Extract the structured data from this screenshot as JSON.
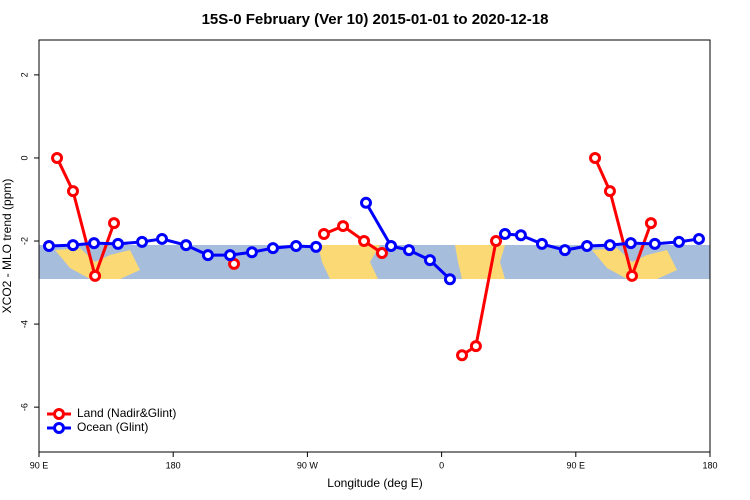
{
  "chart_data": {
    "type": "line",
    "title": "15S-0 February (Ver 10)   2015-01-01 to 2020-12-18",
    "x_label": "Longitude (deg E)",
    "y_label": "XCO2 - MLO trend (ppm)",
    "xlim": [
      90,
      540
    ],
    "ylim": [
      -7.08,
      2.84
    ],
    "xticks": [
      {
        "value": 90,
        "label": "90 E"
      },
      {
        "value": 180,
        "label": "180"
      },
      {
        "value": 270,
        "label": "90 W"
      },
      {
        "value": 360,
        "label": "0"
      },
      {
        "value": 450,
        "label": "90 E"
      },
      {
        "value": 540,
        "label": "180"
      }
    ],
    "yticks": [
      2,
      0,
      -2,
      -4,
      -6
    ],
    "legend": "bottom-left",
    "series": [
      {
        "name": "Land (Nadir&Glint)",
        "color": "#ff0000",
        "x": [
          102.1,
          112.8,
          127.6,
          140.3,
          null,
          220.8,
          null,
          281.1,
          293.9,
          308.0,
          320.0,
          null,
          373.7,
          383.0,
          396.5,
          null,
          462.9,
          472.9,
          487.7,
          500.4
        ],
        "values": [
          0.0,
          -0.8,
          -2.84,
          -1.57,
          null,
          -2.55,
          null,
          -1.83,
          -1.64,
          -2.0,
          -2.29,
          null,
          -4.75,
          -4.53,
          -2.0,
          null,
          0.0,
          -0.8,
          -2.84,
          -1.57
        ]
      },
      {
        "name": "Ocean (Glint)",
        "color": "#0000ff",
        "x": [
          96.7,
          112.8,
          126.9,
          143.0,
          159.1,
          172.5,
          188.6,
          203.3,
          218.1,
          232.8,
          246.9,
          262.4,
          275.8,
          null,
          309.3,
          326.1,
          338.1,
          352.2,
          365.6,
          null,
          402.5,
          413.2,
          427.3,
          442.7,
          457.5,
          472.9,
          486.9,
          503.0,
          519.2,
          532.6
        ],
        "values": [
          -2.12,
          -2.1,
          -2.05,
          -2.07,
          -2.02,
          -1.95,
          -2.1,
          -2.34,
          -2.34,
          -2.27,
          -2.17,
          -2.12,
          -2.14,
          null,
          -1.08,
          -2.12,
          -2.22,
          -2.46,
          -2.92,
          null,
          -1.83,
          -1.86,
          -2.07,
          -2.22,
          -2.12,
          -2.1,
          -2.05,
          -2.07,
          -2.02,
          -1.95
        ]
      }
    ]
  }
}
